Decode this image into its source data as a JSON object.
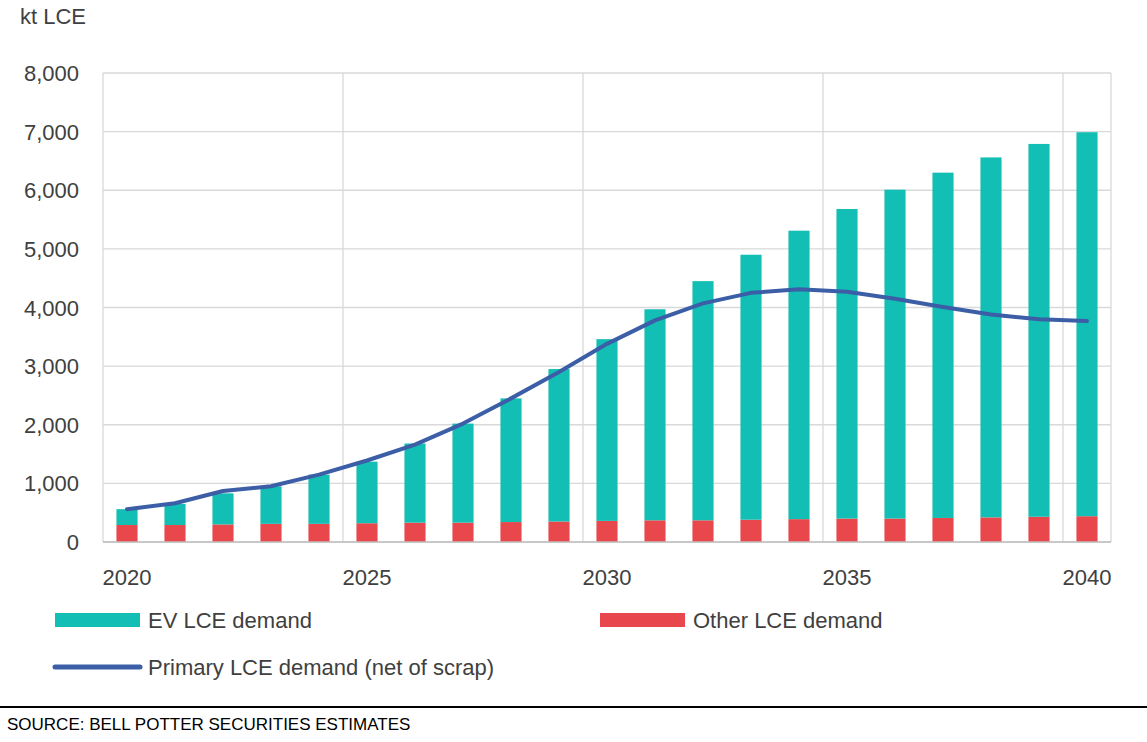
{
  "chart_data": {
    "type": "bar",
    "stacked": true,
    "y_label": "kt LCE",
    "source": "SOURCE: BELL POTTER SECURITIES ESTIMATES",
    "categories": [
      "2020",
      null,
      null,
      null,
      null,
      "2025",
      null,
      null,
      null,
      null,
      "2030",
      null,
      null,
      null,
      null,
      "2035",
      null,
      null,
      null,
      null,
      "2040"
    ],
    "series": [
      {
        "name": "EV LCE demand",
        "type": "bar",
        "color": "#13bfb5",
        "values": [
          270,
          360,
          530,
          640,
          840,
          1050,
          1350,
          1690,
          2110,
          2600,
          3100,
          3600,
          4080,
          4520,
          4920,
          5280,
          5610,
          5890,
          6140,
          6360,
          6550
        ]
      },
      {
        "name": "Other LCE demand",
        "type": "bar",
        "color": "#e8474c",
        "values": [
          290,
          290,
          300,
          310,
          310,
          320,
          330,
          330,
          340,
          350,
          360,
          370,
          370,
          380,
          390,
          400,
          400,
          410,
          420,
          430,
          440
        ]
      },
      {
        "name": "Primary LCE demand (net of scrap)",
        "type": "line",
        "color": "#3b5ea6",
        "line_style": "solid",
        "values": [
          560,
          660,
          870,
          950,
          1150,
          1390,
          1660,
          2020,
          2450,
          2900,
          3380,
          3780,
          4070,
          4250,
          4310,
          4270,
          4150,
          4010,
          3880,
          3800,
          3770
        ]
      }
    ],
    "ylim": [
      0,
      8000
    ],
    "yticks": [
      0,
      {
        "value": 1000,
        "label": "1,000"
      },
      {
        "value": 2000,
        "label": "2,000"
      },
      {
        "value": 3000,
        "label": "3,000"
      },
      {
        "value": 4000,
        "label": "4,000"
      },
      {
        "value": 5000,
        "label": "5,000"
      },
      {
        "value": 6000,
        "label": "6,000"
      },
      {
        "value": 7000,
        "label": "7,000"
      },
      {
        "value": 8000,
        "label": "8,000"
      }
    ],
    "grid": true,
    "legend": "bottom"
  }
}
